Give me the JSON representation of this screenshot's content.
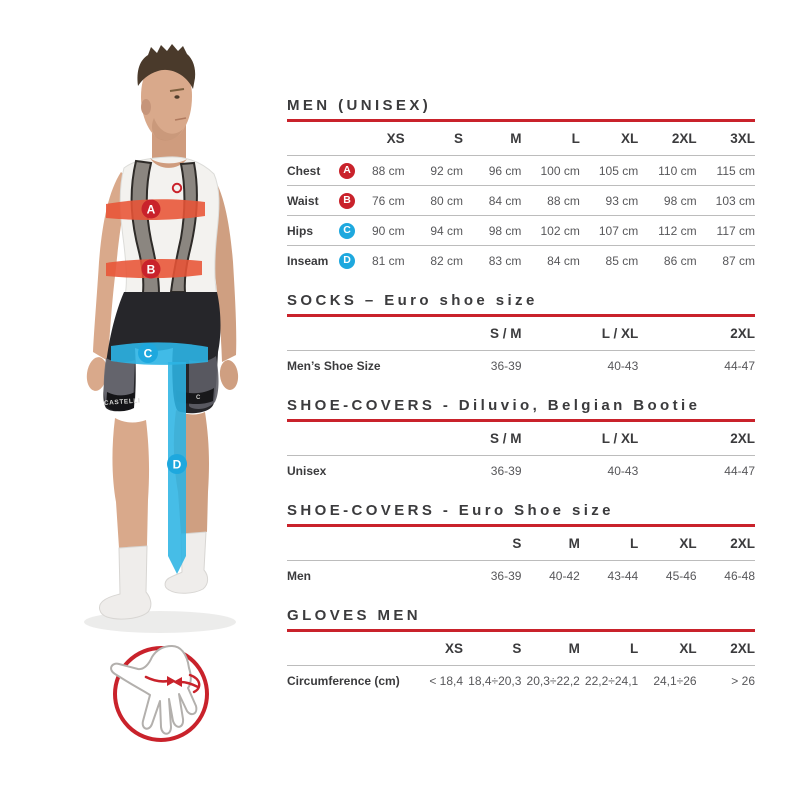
{
  "colors": {
    "accent_red": "#c9222b",
    "badge_blue": "#1ea8de",
    "band_red": "#e85335",
    "band_blue": "#2cb4e4",
    "heading_text": "#3b3b3d",
    "value_text": "#57575a",
    "divider_gray": "#bcbcbc"
  },
  "figure": {
    "brand_text": "CASTELLI",
    "brand_mark_right": "C",
    "markers": [
      {
        "letter": "A",
        "color": "red",
        "measure": "Chest"
      },
      {
        "letter": "B",
        "color": "red",
        "measure": "Waist"
      },
      {
        "letter": "C",
        "color": "blue",
        "measure": "Hips"
      },
      {
        "letter": "D",
        "color": "blue",
        "measure": "Inseam"
      }
    ],
    "icons": [
      "glove-circumference-icon"
    ]
  },
  "chart_data": [
    {
      "type": "table",
      "title": "MEN (UNISEX)",
      "columns": [
        "XS",
        "S",
        "M",
        "L",
        "XL",
        "2XL",
        "3XL"
      ],
      "rows": [
        {
          "label": "Chest",
          "marker": "A",
          "marker_color": "red",
          "values": [
            "88 cm",
            "92 cm",
            "96 cm",
            "100 cm",
            "105 cm",
            "110 cm",
            "115 cm"
          ]
        },
        {
          "label": "Waist",
          "marker": "B",
          "marker_color": "red",
          "values": [
            "76 cm",
            "80 cm",
            "84 cm",
            "88 cm",
            "93 cm",
            "98 cm",
            "103 cm"
          ]
        },
        {
          "label": "Hips",
          "marker": "C",
          "marker_color": "blue",
          "values": [
            "90 cm",
            "94 cm",
            "98 cm",
            "102 cm",
            "107 cm",
            "112 cm",
            "117 cm"
          ]
        },
        {
          "label": "Inseam",
          "marker": "D",
          "marker_color": "blue",
          "values": [
            "81 cm",
            "82 cm",
            "83 cm",
            "84 cm",
            "85 cm",
            "86 cm",
            "87 cm"
          ]
        }
      ]
    },
    {
      "type": "table",
      "title": "SOCKS – Euro shoe size",
      "columns": [
        "S / M",
        "L / XL",
        "2XL"
      ],
      "rows": [
        {
          "label": "Men’s Shoe Size",
          "values": [
            "36-39",
            "40-43",
            "44-47"
          ]
        }
      ]
    },
    {
      "type": "table",
      "title": "SHOE-COVERS - Diluvio, Belgian Bootie",
      "columns": [
        "S / M",
        "L / XL",
        "2XL"
      ],
      "rows": [
        {
          "label": "Unisex",
          "values": [
            "36-39",
            "40-43",
            "44-47"
          ]
        }
      ]
    },
    {
      "type": "table",
      "title": "SHOE-COVERS - Euro Shoe size",
      "columns": [
        "S",
        "M",
        "L",
        "XL",
        "2XL"
      ],
      "rows": [
        {
          "label": "Men",
          "values": [
            "36-39",
            "40-42",
            "43-44",
            "45-46",
            "46-48"
          ]
        }
      ]
    },
    {
      "type": "table",
      "title": "GLOVES MEN",
      "columns": [
        "XS",
        "S",
        "M",
        "L",
        "XL",
        "2XL"
      ],
      "rows": [
        {
          "label": "Circumference (cm)",
          "values": [
            "< 18,4",
            "18,4÷20,3",
            "20,3÷22,2",
            "22,2÷24,1",
            "24,1÷26",
            "> 26"
          ]
        }
      ]
    }
  ]
}
